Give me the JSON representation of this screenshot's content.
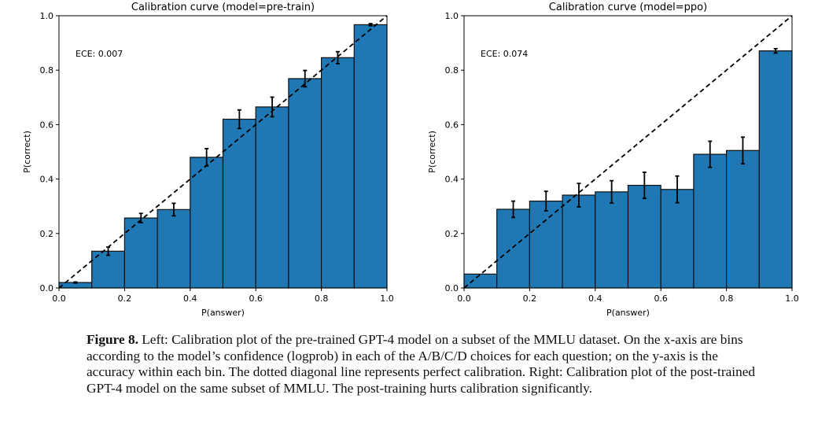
{
  "chart_data": [
    {
      "type": "bar",
      "title": "Calibration curve (model=pre-train)",
      "xlabel": "P(answer)",
      "ylabel": "P(correct)",
      "xlim": [
        0,
        1
      ],
      "ylim": [
        0,
        1
      ],
      "xticks": [
        "0.0",
        "0.2",
        "0.4",
        "0.6",
        "0.8",
        "1.0"
      ],
      "yticks": [
        "0.0",
        "0.2",
        "0.4",
        "0.6",
        "0.8",
        "1.0"
      ],
      "bin_edges": [
        0,
        0.1,
        0.2,
        0.3,
        0.4,
        0.5,
        0.6,
        0.7,
        0.8,
        0.9,
        1.0
      ],
      "values": [
        0.02,
        0.135,
        0.257,
        0.288,
        0.48,
        0.62,
        0.665,
        0.769,
        0.846,
        0.967
      ],
      "errors": [
        0.002,
        0.015,
        0.017,
        0.023,
        0.032,
        0.034,
        0.036,
        0.03,
        0.022,
        0.004
      ],
      "annotation": "ECE: 0.007",
      "reference_line": "diagonal dashed",
      "bar_color": "#1f77b4"
    },
    {
      "type": "bar",
      "title": "Calibration curve (model=ppo)",
      "xlabel": "P(answer)",
      "ylabel": "P(correct)",
      "xlim": [
        0,
        1
      ],
      "ylim": [
        0,
        1
      ],
      "xticks": [
        "0.0",
        "0.2",
        "0.4",
        "0.6",
        "0.8",
        "1.0"
      ],
      "yticks": [
        "0.0",
        "0.2",
        "0.4",
        "0.6",
        "0.8",
        "1.0"
      ],
      "bin_edges": [
        0,
        0.1,
        0.2,
        0.3,
        0.4,
        0.5,
        0.6,
        0.7,
        0.8,
        0.9,
        1.0
      ],
      "values": [
        0.051,
        0.289,
        0.319,
        0.341,
        0.353,
        0.377,
        0.362,
        0.491,
        0.505,
        0.871
      ],
      "errors": [
        0.0,
        0.03,
        0.036,
        0.043,
        0.041,
        0.048,
        0.049,
        0.048,
        0.049,
        0.008
      ],
      "annotation": "ECE: 0.074",
      "reference_line": "diagonal dashed",
      "bar_color": "#1f77b4"
    }
  ],
  "caption": {
    "label": "Figure 8.",
    "text": " Left: Calibration plot of the pre-trained GPT-4 model on a subset of the MMLU dataset. On the x-axis are bins according to the model’s confidence (logprob) in each of the A/B/C/D choices for each question; on the y-axis is the accuracy within each bin. The dotted diagonal line represents perfect calibration. Right: Calibration plot of the post-trained GPT-4 model on the same subset of MMLU. The post-training hurts calibration significantly."
  }
}
